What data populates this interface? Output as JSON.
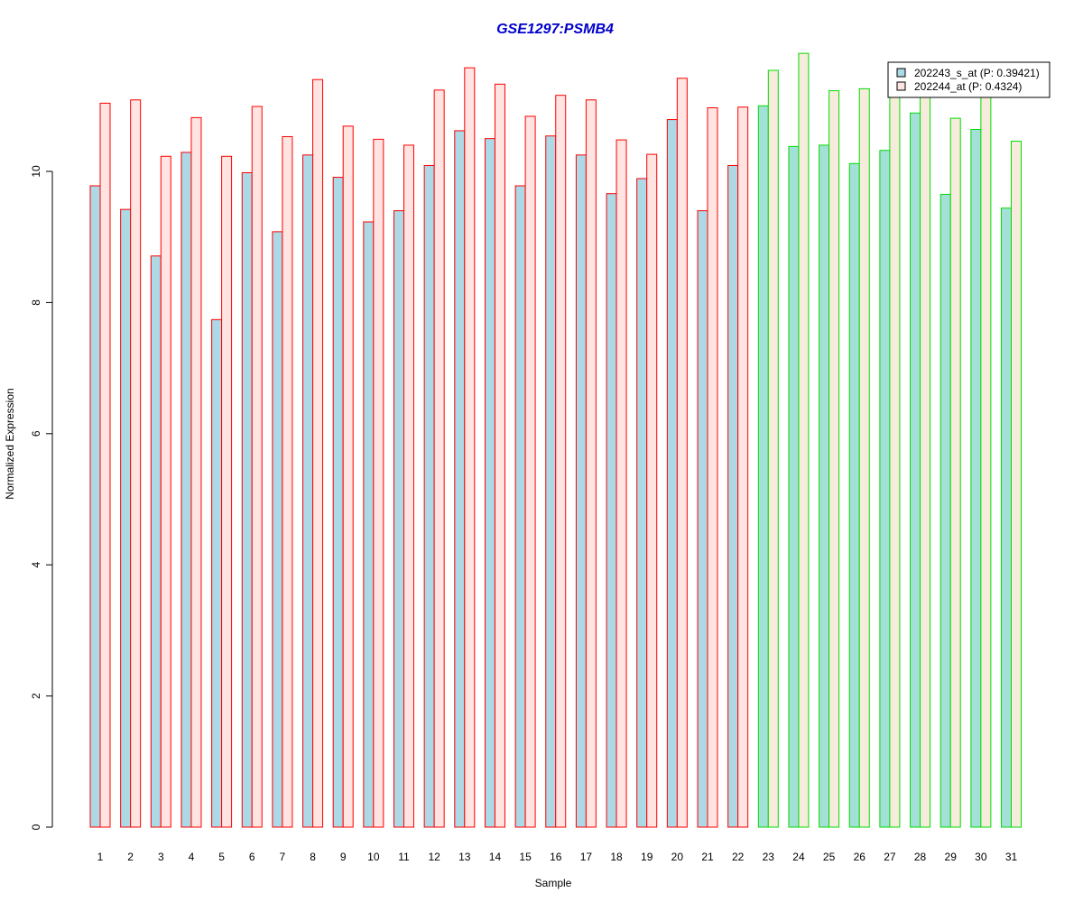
{
  "chart_data": {
    "type": "bar",
    "title": "GSE1297:PSMB4",
    "xlabel": "Sample",
    "ylabel": "Normalized Expression",
    "ylim": [
      0,
      12
    ],
    "yticks": [
      0,
      2,
      4,
      6,
      8,
      10
    ],
    "categories": [
      "1",
      "2",
      "3",
      "4",
      "5",
      "6",
      "7",
      "8",
      "9",
      "10",
      "11",
      "12",
      "13",
      "14",
      "15",
      "16",
      "17",
      "18",
      "19",
      "20",
      "21",
      "22",
      "23",
      "24",
      "25",
      "26",
      "27",
      "28",
      "29",
      "30",
      "31"
    ],
    "series": [
      {
        "name": "202243_s_at (P: 0.39421)",
        "fill": "#add8e6",
        "values": [
          9.78,
          9.42,
          8.71,
          10.29,
          7.74,
          9.98,
          9.08,
          10.25,
          9.91,
          9.23,
          9.4,
          10.09,
          10.62,
          10.5,
          9.78,
          10.54,
          10.25,
          9.66,
          9.89,
          10.79,
          9.4,
          10.09,
          11.0,
          10.38,
          10.4,
          10.12,
          10.32,
          10.89,
          9.65,
          10.64,
          9.44
        ]
      },
      {
        "name": "202244_at (P: 0.4324)",
        "fill": "#ffe4e1",
        "values": [
          11.04,
          11.09,
          10.23,
          10.82,
          10.23,
          10.99,
          10.53,
          11.4,
          10.69,
          10.49,
          10.4,
          11.24,
          11.58,
          11.33,
          10.84,
          11.16,
          11.09,
          10.48,
          10.26,
          11.42,
          10.97,
          10.98,
          11.54,
          11.8,
          11.23,
          11.26,
          11.2,
          11.3,
          10.81,
          11.25,
          10.46
        ]
      }
    ],
    "group_outline_colors": [
      "#ff0000",
      "#00dd00"
    ],
    "group_of_sample": [
      0,
      0,
      0,
      0,
      0,
      0,
      0,
      0,
      0,
      0,
      0,
      0,
      0,
      0,
      0,
      0,
      0,
      0,
      0,
      0,
      0,
      0,
      1,
      1,
      1,
      1,
      1,
      1,
      1,
      1,
      1
    ],
    "group_fill_overrides": {
      "1": [
        "#a3e0d8",
        "#f7ecdc"
      ]
    },
    "grid": false,
    "legend_position": "top-right",
    "title_color": "#0000cc"
  }
}
